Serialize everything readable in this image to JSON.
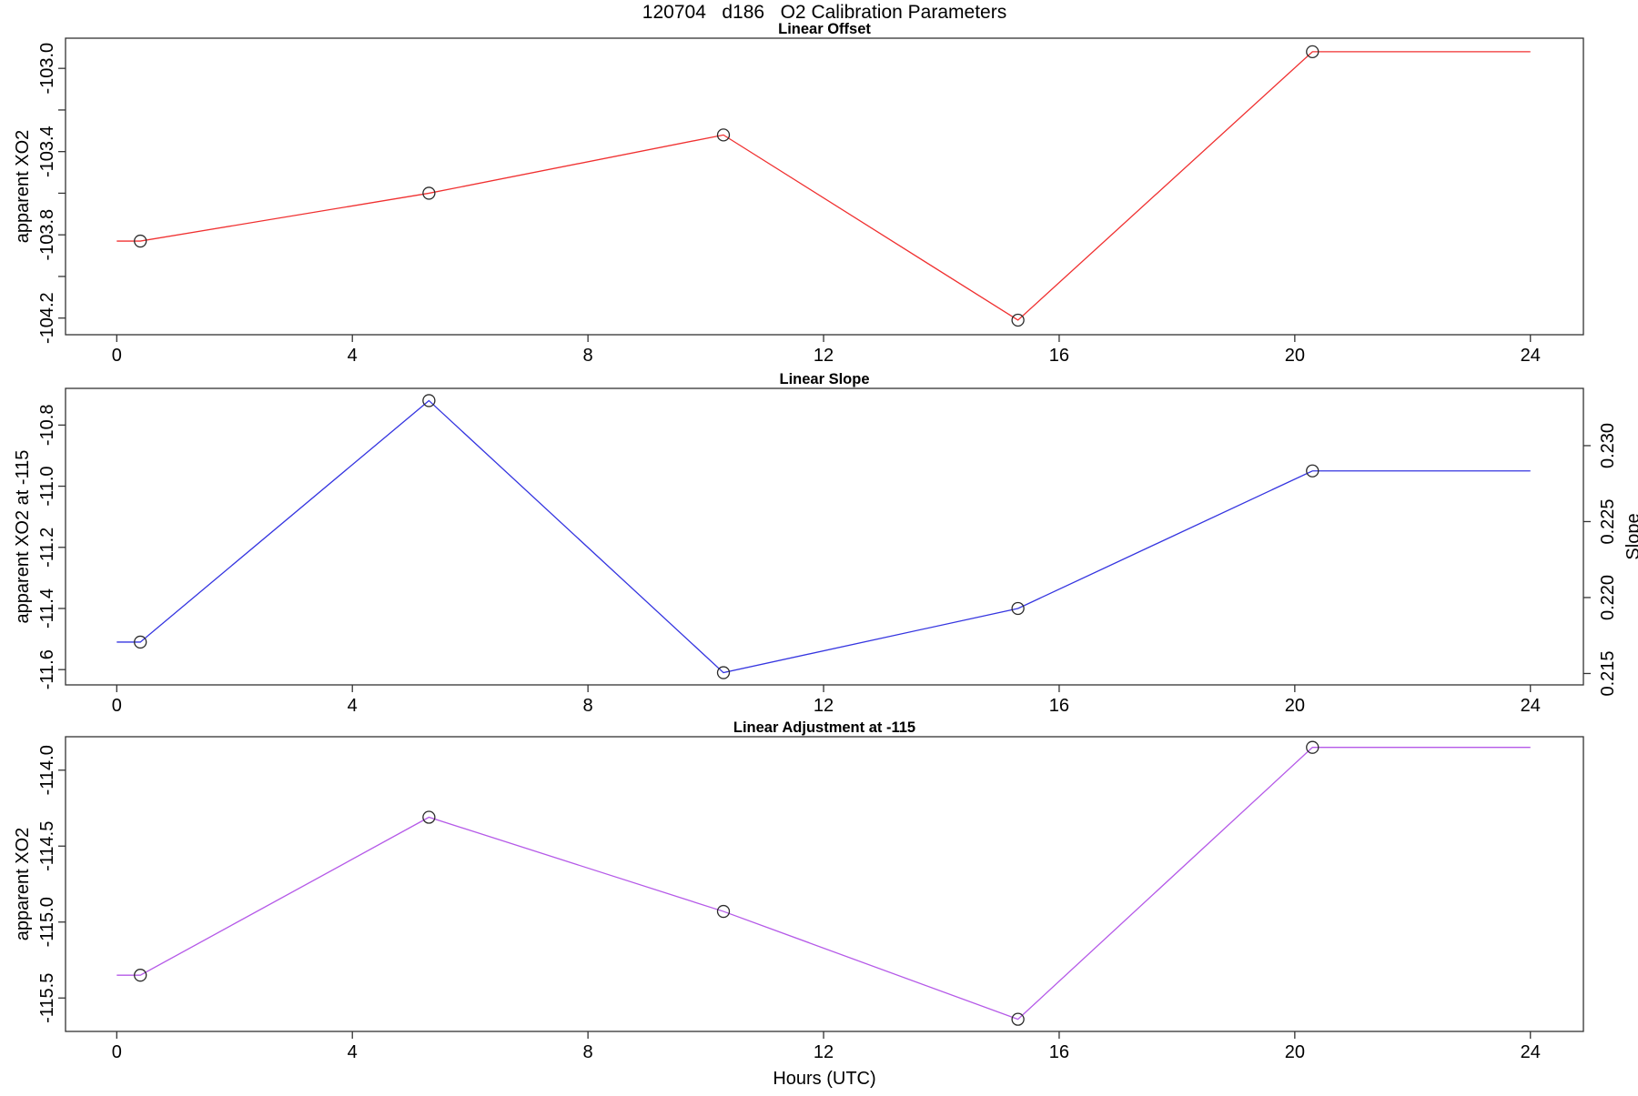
{
  "chart_data": {
    "type": "line",
    "title": "120704   d186   O2 Calibration Parameters",
    "xlabel": "Hours (UTC)",
    "x_ticks": [
      0,
      4,
      8,
      12,
      16,
      20,
      24
    ],
    "xlim": [
      -0.87,
      24.9
    ],
    "hours": [
      0.4,
      5.3,
      10.3,
      15.3,
      20.3
    ],
    "line_extends": [
      0,
      24
    ],
    "grid": "off",
    "legend": "none",
    "marker": "open-circle",
    "panels": [
      {
        "title": "Linear Offset",
        "ylabel": "apparent XO2",
        "color": "#f03030",
        "ylim": [
          -104.28,
          -102.855
        ],
        "yticks": [
          {
            "v": -103.0,
            "label": "-103.0"
          },
          {
            "v": -103.2,
            "label": ""
          },
          {
            "v": -103.4,
            "label": "-103.4"
          },
          {
            "v": -103.6,
            "label": ""
          },
          {
            "v": -103.8,
            "label": "-103.8"
          },
          {
            "v": -104.0,
            "label": ""
          },
          {
            "v": -104.2,
            "label": "-104.2"
          }
        ],
        "values": [
          -103.83,
          -103.6,
          -103.32,
          -104.21,
          -102.92
        ]
      },
      {
        "title": "Linear Slope",
        "ylabel": "apparent XO2 at -115",
        "ylabel_right": "Slope",
        "color": "#3535e0",
        "ylim": [
          -11.65,
          -10.68
        ],
        "yticks": [
          {
            "v": -10.8,
            "label": "-10.8"
          },
          {
            "v": -11.0,
            "label": "-11.0"
          },
          {
            "v": -11.2,
            "label": "-11.2"
          },
          {
            "v": -11.4,
            "label": "-11.4"
          },
          {
            "v": -11.6,
            "label": "-11.6"
          }
        ],
        "right_ylim": [
          0.21425,
          0.23377
        ],
        "right_yticks": [
          {
            "v": 0.23,
            "label": "0.230"
          },
          {
            "v": 0.225,
            "label": "0.225"
          },
          {
            "v": 0.22,
            "label": "0.220"
          },
          {
            "v": 0.215,
            "label": "0.215"
          }
        ],
        "values": [
          -11.51,
          -10.72,
          -11.61,
          -11.4,
          -10.95
        ],
        "slope_values": [
          0.217,
          0.233,
          0.215,
          0.219,
          0.228
        ]
      },
      {
        "title": "Linear Adjustment at -115",
        "ylabel": "apparent XO2",
        "color": "#b55ae8",
        "ylim": [
          -115.72,
          -113.78
        ],
        "yticks": [
          {
            "v": -114.0,
            "label": "-114.0"
          },
          {
            "v": -114.5,
            "label": "-114.5"
          },
          {
            "v": -115.0,
            "label": "-115.0"
          },
          {
            "v": -115.5,
            "label": "-115.5"
          }
        ],
        "values": [
          -115.35,
          -114.31,
          -114.93,
          -115.64,
          -113.85
        ]
      }
    ]
  }
}
